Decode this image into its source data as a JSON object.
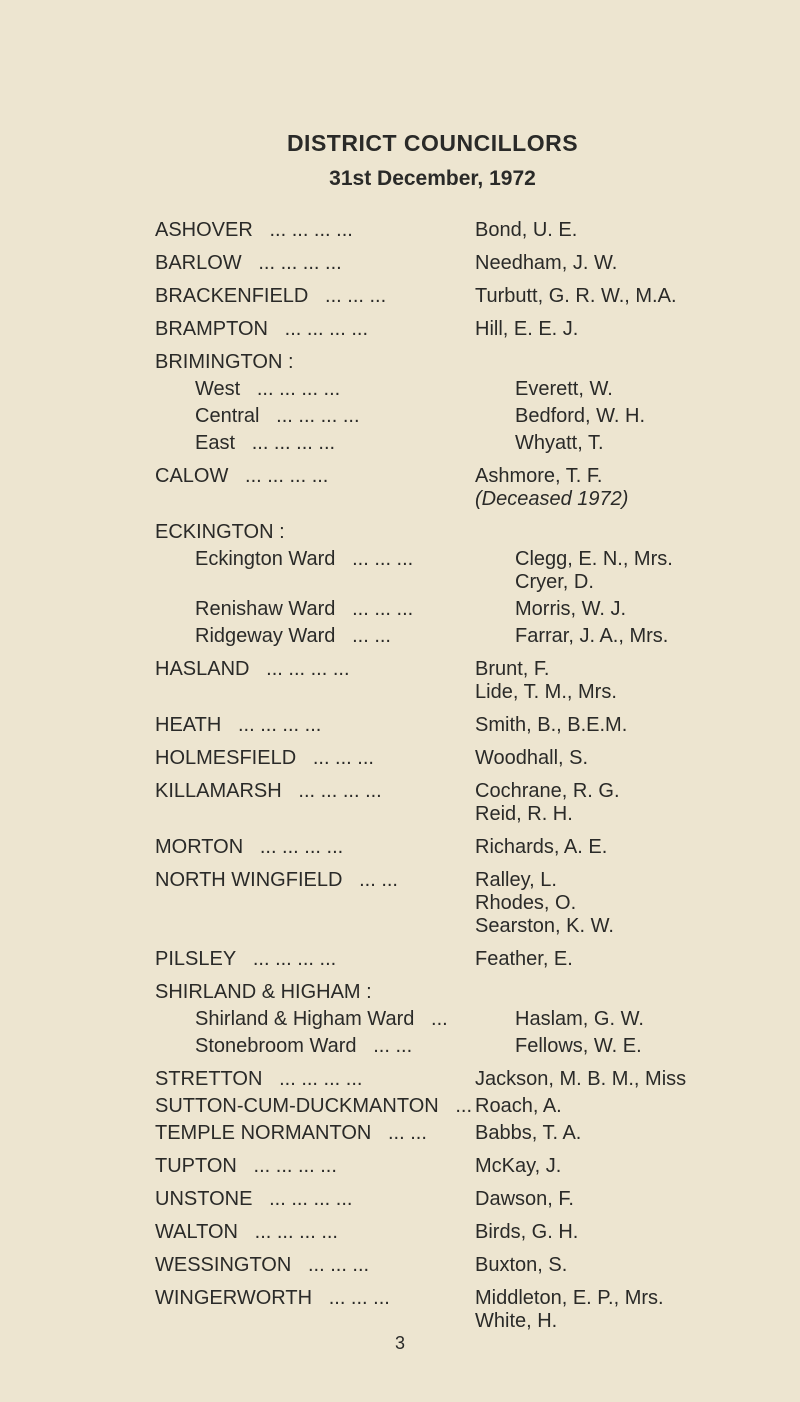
{
  "title": "DISTRICT COUNCILLORS",
  "subtitle": "31st December, 1972",
  "pagenum": "3",
  "entries": [
    {
      "left": "ASHOVER",
      "leader": "...   ...   ...   ...",
      "right": "Bond, U. E.",
      "block": true
    },
    {
      "left": "BARLOW",
      "leader": "...   ...   ...   ...",
      "right": "Needham, J. W.",
      "block": true
    },
    {
      "left": "BRACKENFIELD",
      "leader": "...   ...   ...",
      "right": "Turbutt, G. R. W., M.A.",
      "block": true
    },
    {
      "left": "BRAMPTON",
      "leader": "...   ...   ...   ...",
      "right": "Hill, E. E. J.",
      "block": true
    },
    {
      "left": "BRIMINGTON :",
      "leader": "",
      "right": "",
      "header": true
    },
    {
      "left": "West",
      "leader": "...   ...   ...   ...",
      "right": "Everett, W.",
      "indent": true
    },
    {
      "left": "Central",
      "leader": "...   ...   ...   ...",
      "right": "Bedford, W. H.",
      "indent": true
    },
    {
      "left": "East",
      "leader": "...   ...   ...   ...",
      "right": "Whyatt, T.",
      "indent": true,
      "blockend": true
    },
    {
      "left": "CALOW",
      "leader": "...   ...   ...   ...",
      "right": "Ashmore, T. F.",
      "right2": "(Deceased 1972)",
      "right2italic": true,
      "block": true
    },
    {
      "left": "ECKINGTON :",
      "leader": "",
      "right": "",
      "header": true
    },
    {
      "left": "Eckington Ward",
      "leader": "...   ...   ...",
      "right": "Clegg, E. N., Mrs.",
      "right2": "Cryer, D.",
      "indent": true
    },
    {
      "left": "Renishaw Ward",
      "leader": "...   ...   ...",
      "right": "Morris, W. J.",
      "indent": true
    },
    {
      "left": "Ridgeway Ward",
      "leader": "...   ...",
      "right": "Farrar, J. A., Mrs.",
      "indent": true,
      "blockend": true
    },
    {
      "left": "HASLAND",
      "leader": "...   ...   ...   ...",
      "right": "Brunt, F.",
      "right2": "Lide, T. M., Mrs.",
      "block": true
    },
    {
      "left": "HEATH",
      "leader": "...   ...   ...   ...",
      "right": "Smith, B., B.E.M.",
      "block": true
    },
    {
      "left": "HOLMESFIELD",
      "leader": "...   ...   ...",
      "right": "Woodhall, S.",
      "block": true
    },
    {
      "left": "KILLAMARSH",
      "leader": "...   ...   ...   ...",
      "right": "Cochrane, R. G.",
      "right2": "Reid, R. H.",
      "block": true
    },
    {
      "left": "MORTON",
      "leader": "...   ...   ...   ...",
      "right": "Richards, A. E.",
      "block": true
    },
    {
      "left": "NORTH WINGFIELD",
      "leader": "...   ...",
      "right": "Ralley, L.",
      "right2": "Rhodes, O.",
      "right3": "Searston, K. W.",
      "block": true
    },
    {
      "left": "PILSLEY",
      "leader": "...   ...   ...   ...",
      "right": "Feather, E.",
      "block": true
    },
    {
      "left": "SHIRLAND & HIGHAM :",
      "leader": "",
      "right": "",
      "header": true
    },
    {
      "left": "Shirland & Higham Ward",
      "leader": "...",
      "right": "Haslam, G. W.",
      "indent": true
    },
    {
      "left": "Stonebroom Ward",
      "leader": "...   ...",
      "right": "Fellows, W. E.",
      "indent": true,
      "blockend": true
    },
    {
      "left": "STRETTON",
      "leader": "...   ...   ...   ...",
      "right": "Jackson, M. B. M., Miss"
    },
    {
      "left": "SUTTON-CUM-DUCKMANTON",
      "leader": "...",
      "right": "Roach, A."
    },
    {
      "left": "TEMPLE NORMANTON",
      "leader": "...   ...",
      "right": "Babbs, T. A.",
      "block": true
    },
    {
      "left": "TUPTON",
      "leader": "...   ...   ...   ...",
      "right": "McKay, J.",
      "block": true
    },
    {
      "left": "UNSTONE",
      "leader": "...   ...   ...   ...",
      "right": "Dawson, F.",
      "block": true
    },
    {
      "left": "WALTON",
      "leader": "...   ...   ...   ...",
      "right": "Birds, G. H.",
      "block": true
    },
    {
      "left": "WESSINGTON",
      "leader": "...   ...   ...",
      "right": "Buxton, S.",
      "block": true
    },
    {
      "left": "WINGERWORTH",
      "leader": "...   ...   ...",
      "right": "Middleton, E. P., Mrs.",
      "right2": "White, H.",
      "block": true
    }
  ]
}
